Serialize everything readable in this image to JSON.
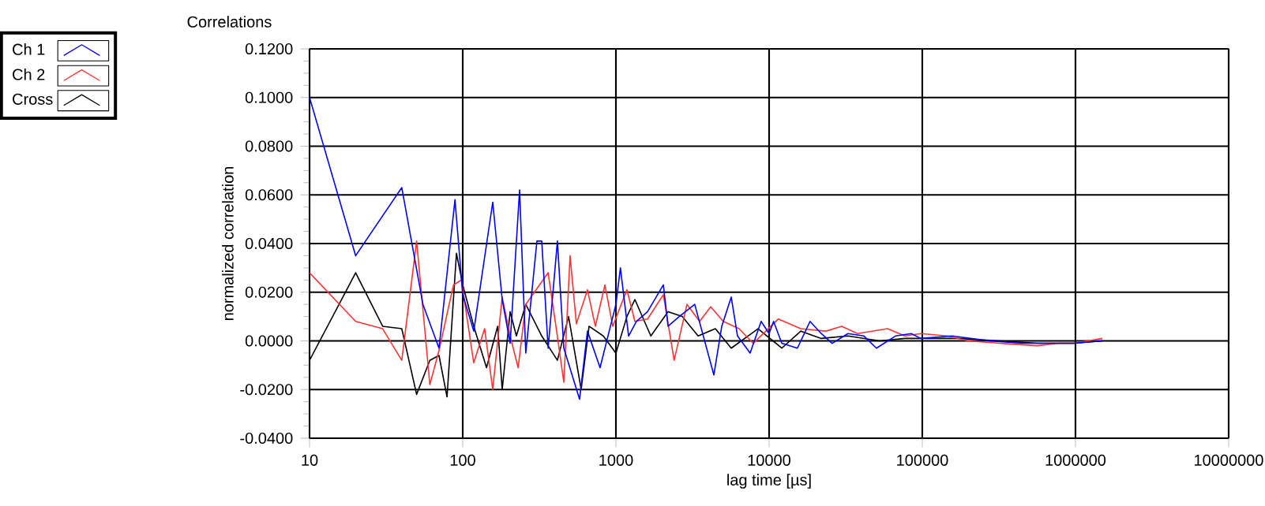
{
  "chart_data": {
    "type": "line",
    "title": "Correlations",
    "xlabel": "lag time [µs]",
    "ylabel": "normalized correlation",
    "log": "x",
    "grid": true,
    "legend": "top left",
    "marker": "none",
    "line_style": "solid",
    "xlim": [
      10,
      10000000
    ],
    "xticks": [
      10,
      100,
      1000,
      10000,
      100000,
      1000000,
      10000000
    ],
    "ylim": [
      -0.04,
      0.12
    ],
    "yticks": [
      {
        "value": -0.04,
        "label": "-0.0400"
      },
      {
        "value": -0.02,
        "label": "-0.0200"
      },
      {
        "value": 0,
        "label": "0.0000"
      },
      {
        "value": 0.02,
        "label": "0.0200"
      },
      {
        "value": 0.04,
        "label": "0.0400"
      },
      {
        "value": 0.06,
        "label": "0.0600"
      },
      {
        "value": 0.08,
        "label": "0.0800"
      },
      {
        "value": 0.1,
        "label": "0.1000"
      },
      {
        "value": 0.12,
        "label": "0.1200"
      }
    ],
    "series": [
      {
        "name": "Ch 1",
        "color": "#0000ff",
        "x": [
          10,
          20,
          40,
          55,
          70,
          89,
          100,
          118,
          157,
          181,
          204,
          235,
          258,
          305,
          328,
          361,
          415,
          457,
          579,
          652,
          788,
          1000,
          1070,
          1210,
          1360,
          1610,
          2040,
          2190,
          2590,
          3270,
          4360,
          4910,
          5660,
          6220,
          7520,
          8870,
          10000,
          10700,
          12100,
          15300,
          18500,
          21900,
          25800,
          32700,
          41600,
          50200,
          66800,
          84700,
          97800,
          157000,
          277000,
          446000,
          652000,
          977000,
          1500000
        ],
        "values": [
          0.1,
          0.035,
          0.063,
          0.015,
          -0.003,
          0.058,
          0.019,
          0.004,
          0.057,
          0.017,
          -0.001,
          0.062,
          -0.005,
          0.041,
          0.041,
          -0.003,
          0.041,
          -0.003,
          -0.024,
          0.004,
          -0.011,
          0.015,
          0.03,
          0.002,
          0.008,
          0.012,
          0.023,
          0.006,
          0.01,
          0.015,
          -0.014,
          0.006,
          0.018,
          0.002,
          -0.005,
          0.008,
          0.003,
          0.008,
          -0.001,
          -0.003,
          0.008,
          0.003,
          -0.001,
          0.003,
          0.002,
          -0.003,
          0.002,
          0.003,
          0.001,
          0.002,
          0,
          -0.001,
          -0.001,
          -0.001,
          0
        ]
      },
      {
        "name": "Ch 2",
        "color": "#ff3333",
        "x": [
          10,
          20,
          30,
          40,
          50,
          61,
          70,
          87,
          98,
          118,
          139,
          157,
          181,
          204,
          230,
          258,
          361,
          406,
          457,
          502,
          552,
          652,
          734,
          848,
          953,
          1180,
          1330,
          1610,
          2040,
          2400,
          2910,
          3520,
          4160,
          5020,
          6370,
          7880,
          11500,
          16100,
          23500,
          29800,
          37800,
          59300,
          77100,
          97800,
          146000,
          199000,
          320000,
          566000,
          770000,
          977000,
          1500000
        ],
        "values": [
          0.028,
          0.008,
          0.005,
          -0.008,
          0.041,
          -0.018,
          -0.004,
          0.023,
          0.025,
          -0.009,
          0.005,
          -0.02,
          0.018,
          0.002,
          -0.011,
          0.015,
          0.028,
          0.006,
          -0.017,
          0.035,
          0.007,
          0.021,
          0.006,
          0.023,
          0.006,
          0.021,
          0.008,
          0.009,
          0.019,
          -0.008,
          0.015,
          0.008,
          0.014,
          0.008,
          0.005,
          -0.001,
          0.009,
          0.005,
          0.004,
          0.006,
          0.003,
          0.005,
          0.002,
          0.003,
          0.002,
          0,
          -0.001,
          -0.002,
          -0.001,
          -0.001,
          0.001
        ]
      },
      {
        "name": "Cross",
        "color": "#000000",
        "x": [
          10,
          20,
          30,
          40,
          50,
          61,
          70,
          79,
          91,
          100,
          118,
          143,
          169,
          181,
          204,
          224,
          258,
          328,
          415,
          491,
          593,
          668,
          827,
          1000,
          1180,
          1330,
          1690,
          2190,
          2710,
          3440,
          4460,
          5660,
          8470,
          12100,
          16100,
          21900,
          32700,
          52700,
          77100,
          107000,
          173000,
          320000,
          566000,
          977000,
          1500000
        ],
        "values": [
          -0.008,
          0.028,
          0.006,
          0.005,
          -0.022,
          -0.008,
          -0.006,
          -0.023,
          0.036,
          0.023,
          0.006,
          -0.011,
          0.006,
          -0.02,
          0.012,
          0.002,
          0.015,
          0.002,
          -0.008,
          0.01,
          -0.02,
          0.006,
          0.002,
          -0.005,
          0.01,
          0.017,
          0.002,
          0.012,
          0.01,
          0.002,
          0.005,
          -0.003,
          0.005,
          -0.003,
          0.004,
          0.001,
          0.002,
          0,
          0.001,
          0.001,
          0.001,
          0,
          -0.001,
          -0.001,
          0
        ]
      }
    ]
  }
}
